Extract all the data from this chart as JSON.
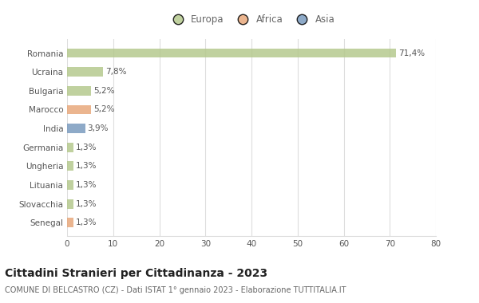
{
  "categories": [
    "Romania",
    "Ucraina",
    "Bulgaria",
    "Marocco",
    "India",
    "Germania",
    "Ungheria",
    "Lituania",
    "Slovacchia",
    "Senegal"
  ],
  "values": [
    71.4,
    7.8,
    5.2,
    5.2,
    3.9,
    1.3,
    1.3,
    1.3,
    1.3,
    1.3
  ],
  "labels": [
    "71,4%",
    "7,8%",
    "5,2%",
    "5,2%",
    "3,9%",
    "1,3%",
    "1,3%",
    "1,3%",
    "1,3%",
    "1,3%"
  ],
  "colors": [
    "#b5c98e",
    "#b5c98e",
    "#b5c98e",
    "#e8a87c",
    "#7a9bbf",
    "#b5c98e",
    "#b5c98e",
    "#b5c98e",
    "#b5c98e",
    "#e8a87c"
  ],
  "legend": [
    {
      "label": "Europa",
      "color": "#b5c98e"
    },
    {
      "label": "Africa",
      "color": "#e8a87c"
    },
    {
      "label": "Asia",
      "color": "#7a9bbf"
    }
  ],
  "xlim": [
    0,
    80
  ],
  "xticks": [
    0,
    10,
    20,
    30,
    40,
    50,
    60,
    70,
    80
  ],
  "title": "Cittadini Stranieri per Cittadinanza - 2023",
  "subtitle": "COMUNE DI BELCASTRO (CZ) - Dati ISTAT 1° gennaio 2023 - Elaborazione TUTTITALIA.IT",
  "background_color": "#ffffff",
  "bar_height": 0.5,
  "grid_color": "#dddddd",
  "title_fontsize": 10,
  "subtitle_fontsize": 7,
  "label_fontsize": 7.5,
  "tick_fontsize": 7.5,
  "legend_fontsize": 8.5
}
